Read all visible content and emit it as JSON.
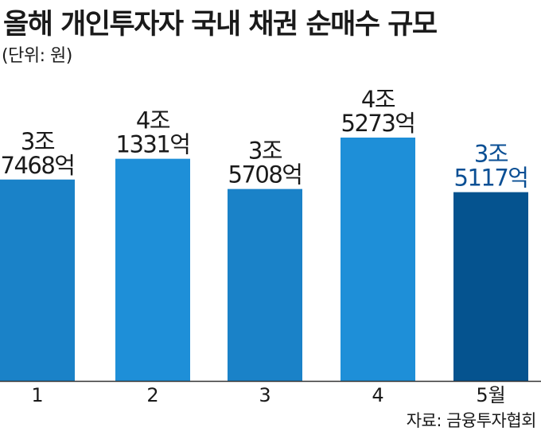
{
  "title": "올해 개인투자자 국내 채권 순매수 규모",
  "unit_note": "(단위: 원)",
  "source": "자료: 금융투자협회",
  "colors": {
    "bar_odd": "#1a82c8",
    "bar_even": "#1e8fd8",
    "bar_highlight": "#05538f",
    "label_default": "#1a1a1a",
    "label_highlight": "#0a4f94",
    "axis_line": "#333333"
  },
  "chart_data": {
    "type": "bar",
    "categories": [
      "1",
      "2",
      "3",
      "4",
      "5월"
    ],
    "values": [
      37468,
      41331,
      35708,
      45273,
      35117
    ],
    "value_unit": "억 원",
    "data_labels": [
      [
        "3조",
        "7468억"
      ],
      [
        "4조",
        "1331억"
      ],
      [
        "3조",
        "5708억"
      ],
      [
        "4조",
        "5273억"
      ],
      [
        "3조",
        "5117억"
      ]
    ],
    "highlight_index": 4,
    "ylim": [
      0,
      45273
    ],
    "grid": false,
    "legend": "none"
  }
}
